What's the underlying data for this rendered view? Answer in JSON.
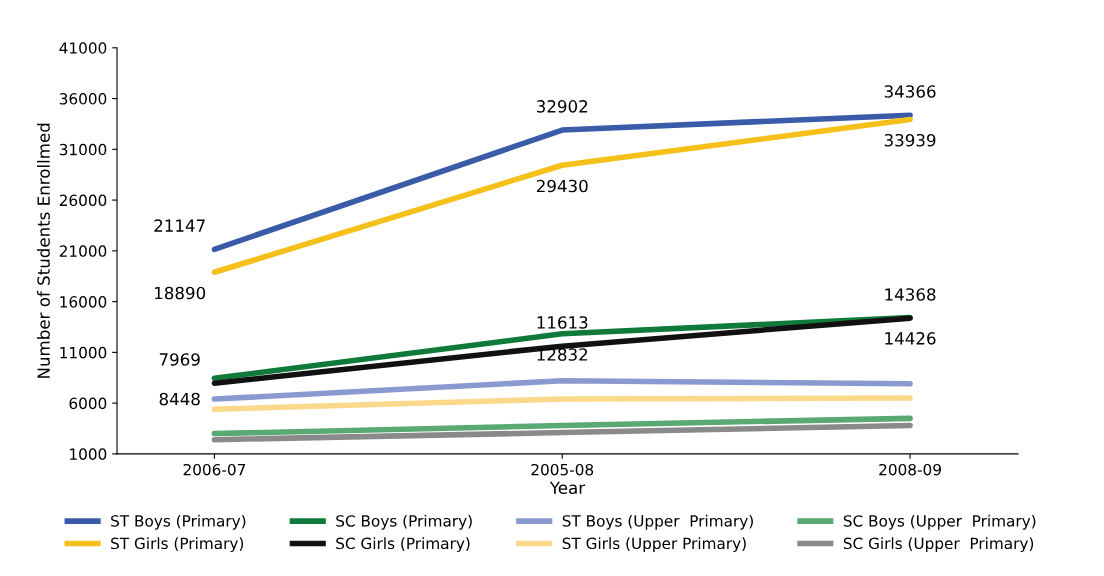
{
  "chart_data": {
    "type": "line",
    "xlabel": "Year",
    "ylabel": "Number of Students Enrollmed",
    "categories": [
      "2006-07",
      "2005-08",
      "2008-09"
    ],
    "ylim": [
      1000,
      41000
    ],
    "yticks": [
      1000,
      6000,
      11000,
      16000,
      21000,
      26000,
      31000,
      36000,
      41000
    ],
    "grid": false,
    "legend": "bottom",
    "marker": "none",
    "line_style": "solid",
    "series": [
      {
        "name": "ST Boys (Primary)",
        "color": "#3a5ba8",
        "values": [
          21147,
          32902,
          34366
        ],
        "value_labels": [
          "21147",
          "32902",
          "34366"
        ]
      },
      {
        "name": "ST Girls (Primary)",
        "color": "#f5c01a",
        "values": [
          18890,
          29430,
          33939
        ],
        "value_labels": [
          "18890",
          "29430",
          "33939"
        ]
      },
      {
        "name": "SC Boys (Primary)",
        "color": "#0f7a3a",
        "values": [
          8448,
          12832,
          14426
        ],
        "value_labels": [
          "8448",
          "12832",
          "14426"
        ]
      },
      {
        "name": "SC Girls (Primary)",
        "color": "#111111",
        "values": [
          7969,
          11613,
          14368
        ],
        "value_labels": [
          "7969",
          "11613",
          "14368"
        ]
      },
      {
        "name": "ST Boys (Upper  Primary)",
        "color": "#8a9ad0",
        "values": [
          6400,
          8200,
          7900
        ]
      },
      {
        "name": "ST Girls (Upper Primary)",
        "color": "#fcd98a",
        "values": [
          5400,
          6400,
          6500
        ]
      },
      {
        "name": "SC Boys (Upper  Primary)",
        "color": "#5aa872",
        "values": [
          3000,
          3800,
          4500
        ]
      },
      {
        "name": "SC Girls (Upper  Primary)",
        "color": "#8a8a8a",
        "values": [
          2400,
          3100,
          3800
        ]
      }
    ]
  }
}
